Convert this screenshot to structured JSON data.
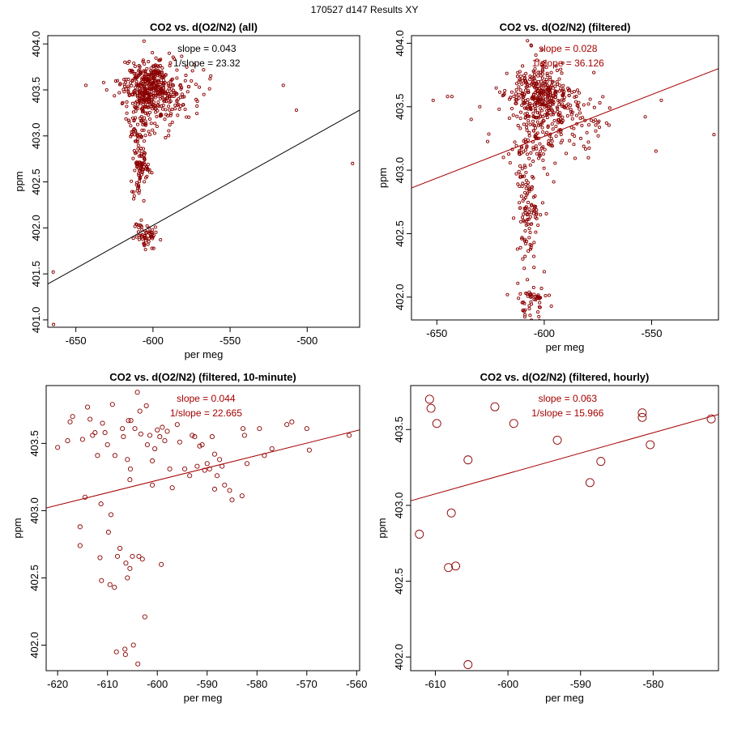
{
  "page_title": "170527   d147   Results XY",
  "colors": {
    "points": "#8b0000",
    "fit_dark": "#000000",
    "fit_red": "#a50000",
    "box": "#000000"
  },
  "chart_data": [
    {
      "type": "scatter",
      "title": "CO2 vs. d(O2/N2) (all)",
      "xlabel": "per meg",
      "ylabel": "ppm",
      "xlim": [
        -668.2,
        -466.0
      ],
      "ylim": [
        400.92,
        404.09
      ],
      "xticks": [
        -650,
        -600,
        -550,
        -500
      ],
      "xtick_labels": [
        "-650",
        "-600",
        "-550",
        "-500"
      ],
      "yticks": [
        401.0,
        401.5,
        402.0,
        402.5,
        403.0,
        403.5,
        404.0
      ],
      "ytick_labels": [
        "401.0",
        "401.5",
        "402.0",
        "402.5",
        "403.0",
        "403.5",
        "404.0"
      ],
      "annotations": [
        "slope = 0.043",
        "1/slope = 23.32"
      ],
      "annotation_color": "#000000",
      "fit": {
        "x": [
          -668.2,
          -466.0
        ],
        "y": [
          401.39,
          403.28
        ],
        "color": "#000000"
      },
      "point_radius": 1.6,
      "clusters": [
        {
          "cx": -603,
          "cy": 403.55,
          "sx": 8,
          "sy": 0.13,
          "n": 360
        },
        {
          "cx": -588,
          "cy": 403.45,
          "sx": 10,
          "sy": 0.15,
          "n": 90
        },
        {
          "cx": -605,
          "cy": 403.2,
          "sx": 6,
          "sy": 0.12,
          "n": 70
        },
        {
          "cx": -609,
          "cy": 402.85,
          "sx": 2.5,
          "sy": 0.15,
          "n": 45
        },
        {
          "cx": -607,
          "cy": 402.63,
          "sx": 3,
          "sy": 0.06,
          "n": 40
        },
        {
          "cx": -610,
          "cy": 402.45,
          "sx": 2.5,
          "sy": 0.08,
          "n": 20
        },
        {
          "cx": -605,
          "cy": 401.93,
          "sx": 4,
          "sy": 0.07,
          "n": 60
        }
      ],
      "extra_points": [
        {
          "x": -664.7,
          "y": 401.52
        },
        {
          "x": -664.5,
          "y": 400.95
        },
        {
          "x": -470.6,
          "y": 402.7
        },
        {
          "x": -507.0,
          "y": 403.28
        },
        {
          "x": -515.5,
          "y": 403.55
        },
        {
          "x": -643.5,
          "y": 403.55
        },
        {
          "x": -605.8,
          "y": 404.03
        },
        {
          "x": -620.0,
          "y": 403.35
        },
        {
          "x": -623.0,
          "y": 403.6
        },
        {
          "x": -630.0,
          "y": 403.5
        },
        {
          "x": -632.0,
          "y": 403.58
        },
        {
          "x": -563.0,
          "y": 403.62
        },
        {
          "x": -567.0,
          "y": 403.45
        },
        {
          "x": -579.0,
          "y": 403.6
        }
      ]
    },
    {
      "type": "scatter",
      "title": "CO2 vs. d(O2/N2) (filtered)",
      "xlabel": "per meg",
      "ylabel": "ppm",
      "xlim": [
        -661.8,
        -518.9
      ],
      "ylim": [
        401.82,
        404.06
      ],
      "xticks": [
        -650,
        -600,
        -550
      ],
      "xtick_labels": [
        "-650",
        "-600",
        "-550"
      ],
      "yticks": [
        402.0,
        402.5,
        403.0,
        403.5,
        404.0
      ],
      "ytick_labels": [
        "402.0",
        "402.5",
        "403.0",
        "403.5",
        "404.0"
      ],
      "annotations": [
        "slope = 0.028",
        "1/slope = 36.126"
      ],
      "annotation_color": "#a50000",
      "fit": {
        "x": [
          -661.8,
          -518.9
        ],
        "y": [
          402.86,
          403.8
        ],
        "color": "#a50000"
      },
      "point_radius": 1.6,
      "clusters": [
        {
          "cx": -603,
          "cy": 403.58,
          "sx": 7,
          "sy": 0.11,
          "n": 330
        },
        {
          "cx": -590,
          "cy": 403.4,
          "sx": 11,
          "sy": 0.14,
          "n": 110
        },
        {
          "cx": -604,
          "cy": 403.2,
          "sx": 6,
          "sy": 0.12,
          "n": 70
        },
        {
          "cx": -609,
          "cy": 402.9,
          "sx": 2.5,
          "sy": 0.15,
          "n": 45
        },
        {
          "cx": -607,
          "cy": 402.65,
          "sx": 3,
          "sy": 0.06,
          "n": 40
        },
        {
          "cx": -608,
          "cy": 402.45,
          "sx": 2.5,
          "sy": 0.1,
          "n": 25
        },
        {
          "cx": -605,
          "cy": 401.95,
          "sx": 3.5,
          "sy": 0.06,
          "n": 55
        }
      ],
      "extra_points": [
        {
          "x": -651.7,
          "y": 403.55
        },
        {
          "x": -645.0,
          "y": 403.58
        },
        {
          "x": -643.0,
          "y": 403.58
        },
        {
          "x": -521.0,
          "y": 403.28
        },
        {
          "x": -545.5,
          "y": 403.55
        },
        {
          "x": -553.0,
          "y": 403.42
        },
        {
          "x": -548.0,
          "y": 403.15
        },
        {
          "x": -607.8,
          "y": 404.02
        },
        {
          "x": -606.0,
          "y": 403.98
        },
        {
          "x": -601.0,
          "y": 403.95
        },
        {
          "x": -634.0,
          "y": 403.4
        },
        {
          "x": -630.0,
          "y": 403.5
        },
        {
          "x": -621.0,
          "y": 403.48
        },
        {
          "x": -600.0,
          "y": 402.2
        },
        {
          "x": -610.0,
          "y": 402.3
        },
        {
          "x": -619.0,
          "y": 403.1
        }
      ]
    },
    {
      "type": "scatter",
      "title": "CO2 vs. d(O2/N2) (filtered, 10-minute)",
      "xlabel": "per meg",
      "ylabel": "ppm",
      "xlim": [
        -622.3,
        -559.4
      ],
      "ylim": [
        401.81,
        403.93
      ],
      "xticks": [
        -620,
        -610,
        -600,
        -590,
        -580,
        -570,
        -560
      ],
      "xtick_labels": [
        "-620",
        "-610",
        "-600",
        "-590",
        "-580",
        "-570",
        "-560"
      ],
      "yticks": [
        402.0,
        402.5,
        403.0,
        403.5
      ],
      "ytick_labels": [
        "402.0",
        "402.5",
        "403.0",
        "403.5"
      ],
      "annotations": [
        "slope = 0.044",
        "1/slope = 22.665"
      ],
      "annotation_color": "#a50000",
      "fit": {
        "x": [
          -622.3,
          -559.4
        ],
        "y": [
          403.02,
          403.6
        ],
        "color": "#a50000"
      },
      "point_radius": 2.6,
      "points": [
        [
          -620.0,
          403.47
        ],
        [
          -618.0,
          403.52
        ],
        [
          -617.5,
          403.66
        ],
        [
          -617.0,
          403.7
        ],
        [
          -615.5,
          402.88
        ],
        [
          -615.5,
          402.74
        ],
        [
          -615.0,
          403.53
        ],
        [
          -614.5,
          403.1
        ],
        [
          -614.0,
          403.77
        ],
        [
          -613.5,
          403.68
        ],
        [
          -613.0,
          403.56
        ],
        [
          -612.5,
          403.58
        ],
        [
          -612.0,
          403.41
        ],
        [
          -611.5,
          402.65
        ],
        [
          -611.3,
          403.05
        ],
        [
          -611.2,
          402.48
        ],
        [
          -611.0,
          403.65
        ],
        [
          -610.5,
          403.58
        ],
        [
          -610.0,
          403.49
        ],
        [
          -609.8,
          402.84
        ],
        [
          -609.5,
          402.45
        ],
        [
          -609.3,
          402.97
        ],
        [
          -609.0,
          403.79
        ],
        [
          -608.6,
          402.43
        ],
        [
          -608.5,
          403.41
        ],
        [
          -608.2,
          401.95
        ],
        [
          -608.0,
          402.66
        ],
        [
          -607.5,
          402.72
        ],
        [
          -607.0,
          403.61
        ],
        [
          -606.8,
          403.55
        ],
        [
          -606.5,
          401.97
        ],
        [
          -606.4,
          401.93
        ],
        [
          -606.3,
          402.61
        ],
        [
          -606.0,
          403.38
        ],
        [
          -606.0,
          402.5
        ],
        [
          -605.8,
          403.67
        ],
        [
          -605.5,
          403.23
        ],
        [
          -605.5,
          402.57
        ],
        [
          -605.4,
          403.31
        ],
        [
          -605.3,
          403.67
        ],
        [
          -605.0,
          402.66
        ],
        [
          -604.8,
          402.0
        ],
        [
          -604.5,
          403.61
        ],
        [
          -604.0,
          403.88
        ],
        [
          -603.9,
          401.86
        ],
        [
          -603.7,
          402.66
        ],
        [
          -603.5,
          403.74
        ],
        [
          -603.3,
          403.57
        ],
        [
          -603.0,
          402.64
        ],
        [
          -602.5,
          402.21
        ],
        [
          -602.2,
          403.78
        ],
        [
          -602.0,
          403.49
        ],
        [
          -601.5,
          403.56
        ],
        [
          -601.0,
          403.37
        ],
        [
          -601.0,
          403.19
        ],
        [
          -600.5,
          403.46
        ],
        [
          -600.0,
          403.6
        ],
        [
          -599.5,
          403.55
        ],
        [
          -599.2,
          402.6
        ],
        [
          -599.0,
          403.62
        ],
        [
          -598.5,
          403.52
        ],
        [
          -598.0,
          403.59
        ],
        [
          -597.5,
          403.31
        ],
        [
          -597.0,
          403.17
        ],
        [
          -596.0,
          403.64
        ],
        [
          -595.5,
          403.51
        ],
        [
          -594.5,
          403.31
        ],
        [
          -593.5,
          403.26
        ],
        [
          -593.0,
          403.56
        ],
        [
          -592.5,
          403.55
        ],
        [
          -592.0,
          403.33
        ],
        [
          -591.5,
          403.48
        ],
        [
          -591.0,
          403.49
        ],
        [
          -590.5,
          403.3
        ],
        [
          -590.0,
          403.35
        ],
        [
          -589.5,
          403.31
        ],
        [
          -589.0,
          403.55
        ],
        [
          -588.5,
          403.42
        ],
        [
          -588.5,
          403.16
        ],
        [
          -588.0,
          403.26
        ],
        [
          -587.5,
          403.38
        ],
        [
          -587.0,
          403.33
        ],
        [
          -586.5,
          403.19
        ],
        [
          -585.5,
          403.15
        ],
        [
          -585.0,
          403.08
        ],
        [
          -583.0,
          403.11
        ],
        [
          -582.8,
          403.61
        ],
        [
          -582.5,
          403.56
        ],
        [
          -582.0,
          403.35
        ],
        [
          -579.5,
          403.61
        ],
        [
          -578.5,
          403.41
        ],
        [
          -577.0,
          403.46
        ],
        [
          -574.0,
          403.64
        ],
        [
          -573.0,
          403.66
        ],
        [
          -570.0,
          403.61
        ],
        [
          -569.5,
          403.45
        ],
        [
          -561.5,
          403.56
        ]
      ]
    },
    {
      "type": "scatter",
      "title": "CO2 vs. d(O2/N2) (filtered, hourly)",
      "xlabel": "per meg",
      "ylabel": "ppm",
      "xlim": [
        -613.4,
        -571.0
      ],
      "ylim": [
        401.91,
        403.79
      ],
      "xticks": [
        -610,
        -600,
        -590,
        -580
      ],
      "xtick_labels": [
        "-610",
        "-600",
        "-590",
        "-580"
      ],
      "yticks": [
        402.0,
        402.5,
        403.0,
        403.5
      ],
      "ytick_labels": [
        "402.0",
        "402.5",
        "403.0",
        "403.5"
      ],
      "annotations": [
        "slope = 0.063",
        "1/slope = 15.966"
      ],
      "annotation_color": "#a50000",
      "fit": {
        "x": [
          -613.4,
          -571.0
        ],
        "y": [
          403.03,
          403.6
        ],
        "color": "#a50000"
      },
      "point_radius": 5,
      "points": [
        [
          -612.2,
          402.81
        ],
        [
          -610.8,
          403.7
        ],
        [
          -610.6,
          403.64
        ],
        [
          -609.8,
          403.54
        ],
        [
          -608.2,
          402.59
        ],
        [
          -607.8,
          402.95
        ],
        [
          -607.2,
          402.6
        ],
        [
          -605.5,
          403.3
        ],
        [
          -605.5,
          401.95
        ],
        [
          -601.8,
          403.65
        ],
        [
          -599.2,
          403.54
        ],
        [
          -593.2,
          403.43
        ],
        [
          -588.7,
          403.15
        ],
        [
          -587.2,
          403.29
        ],
        [
          -581.5,
          403.61
        ],
        [
          -581.5,
          403.58
        ],
        [
          -580.4,
          403.4
        ],
        [
          -572.0,
          403.57
        ]
      ]
    }
  ]
}
